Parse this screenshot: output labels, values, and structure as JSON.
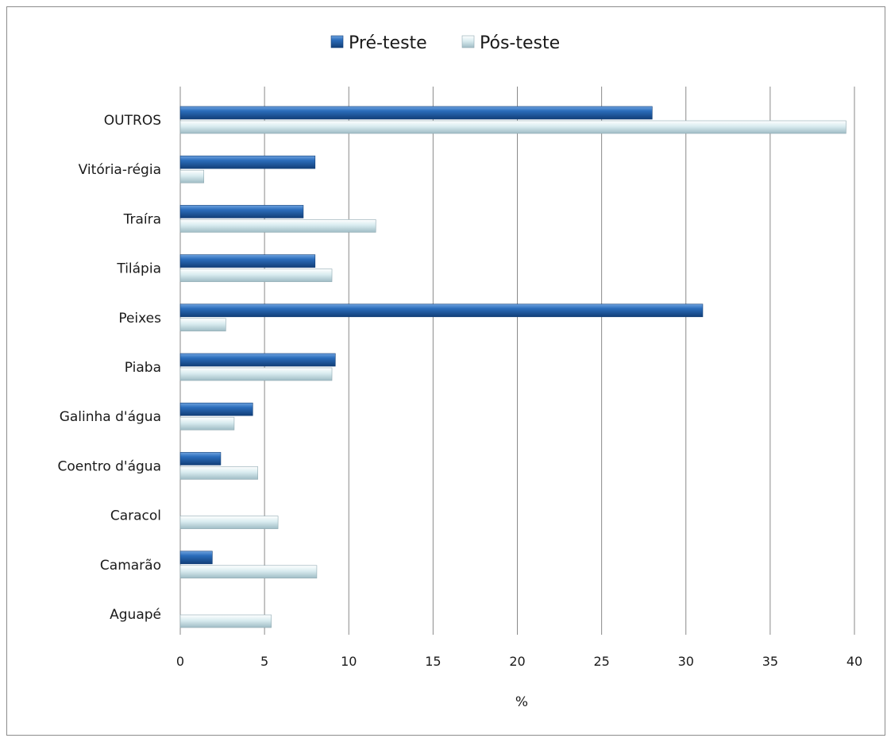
{
  "chart_data": {
    "type": "bar",
    "orientation": "horizontal",
    "title": "",
    "xlabel": "%",
    "ylabel": "",
    "xlim": [
      0,
      40
    ],
    "x_ticks": [
      0,
      5,
      10,
      15,
      20,
      25,
      30,
      35,
      40
    ],
    "grid": "vertical",
    "legend": "top-center",
    "categories": [
      "OUTROS",
      "Vitória-régia",
      "Traíra",
      "Tilápia",
      "Peixes",
      "Piaba",
      "Galinha d'água",
      "Coentro d'água",
      "Caracol",
      "Camarão",
      "Aguapé"
    ],
    "series": [
      {
        "name": "Pré-teste",
        "color": "#1f5fad",
        "values": [
          28,
          8,
          7.3,
          8,
          31,
          9.2,
          4.3,
          2.4,
          0,
          1.9,
          0
        ]
      },
      {
        "name": "Pós-teste",
        "color": "#cde4ea",
        "values": [
          39.5,
          1.4,
          11.6,
          9,
          2.7,
          9,
          3.2,
          4.6,
          5.8,
          8.1,
          5.4
        ]
      }
    ]
  }
}
